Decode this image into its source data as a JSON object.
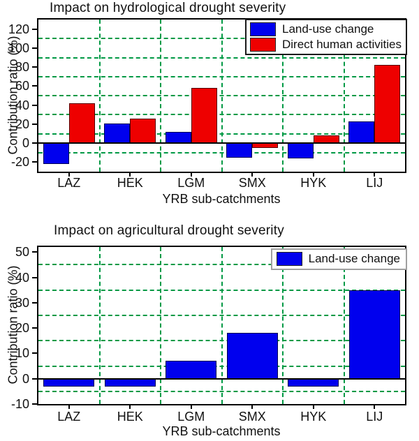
{
  "figure_caption": "Two-panel bar chart of contribution ratios by YRB sub-catchment",
  "colors": {
    "bar_blue": "#0000ee",
    "bar_red": "#ee0000",
    "grid_green": "#009944",
    "axis_black": "#000000",
    "background": "#ffffff"
  },
  "chart_data": [
    {
      "type": "bar",
      "title": "Impact on hydrological drought severity",
      "xlabel": "YRB sub-catchments",
      "ylabel": "Contribution ratio (%)",
      "categories": [
        "LAZ",
        "HEK",
        "LGM",
        "SMX",
        "HYK",
        "LIJ"
      ],
      "series": [
        {
          "name": "Land-use change",
          "color": "#0000ee",
          "values": [
            -22,
            21,
            12,
            -15,
            -16,
            23
          ]
        },
        {
          "name": "Direct human activities",
          "color": "#ee0000",
          "values": [
            42,
            26,
            58,
            -5,
            8,
            82
          ]
        }
      ],
      "ylim": [
        -30,
        130
      ],
      "yticks": [
        -20,
        0,
        20,
        40,
        60,
        80,
        100,
        120
      ],
      "ygridlines": [
        -10,
        10,
        30,
        50,
        70,
        90,
        110
      ],
      "grid_style": "dashed-green",
      "legend_position": "top-right",
      "legend_border": "black",
      "zero_line": true
    },
    {
      "type": "bar",
      "title": "Impact on agricultural drought severity",
      "xlabel": "YRB sub-catchments",
      "ylabel": "Contribution ratio (%)",
      "categories": [
        "LAZ",
        "HEK",
        "LGM",
        "SMX",
        "HYK",
        "LIJ"
      ],
      "series": [
        {
          "name": "Land-use change",
          "color": "#0000ee",
          "values": [
            -3,
            -3,
            7,
            18,
            -3,
            35
          ]
        }
      ],
      "ylim": [
        -10,
        52
      ],
      "yticks": [
        -10,
        0,
        10,
        20,
        30,
        40,
        50
      ],
      "ygridlines": [
        -5,
        5,
        15,
        25,
        35,
        45
      ],
      "grid_style": "dashed-green",
      "legend_position": "top-right",
      "legend_border": "gray",
      "zero_line": true
    }
  ]
}
